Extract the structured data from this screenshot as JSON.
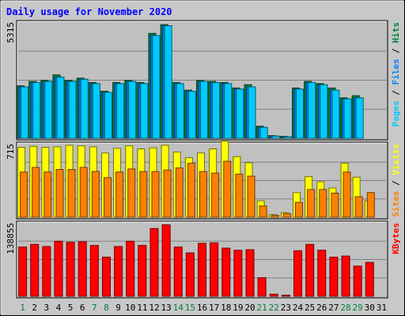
{
  "chart_data": {
    "type": "bar",
    "title": "Daily usage for November 2020",
    "categories": [
      "1",
      "2",
      "3",
      "4",
      "5",
      "6",
      "7",
      "8",
      "9",
      "10",
      "11",
      "12",
      "13",
      "14",
      "15",
      "16",
      "17",
      "18",
      "19",
      "20",
      "21",
      "22",
      "23",
      "24",
      "25",
      "26",
      "27",
      "28",
      "29",
      "30",
      "31"
    ],
    "weekend_days": [
      "1",
      "7",
      "8",
      "14",
      "15",
      "21",
      "22",
      "28",
      "29"
    ],
    "panels": [
      {
        "name": "pages-files-hits",
        "ymax": 5315,
        "ymax_label": "5315",
        "side_label": [
          "Pages",
          " / ",
          "Files",
          " / ",
          "Hits"
        ],
        "series": [
          {
            "name": "Hits",
            "color": "#008040",
            "values": [
              2400,
              2600,
              2650,
              2900,
              2650,
              2750,
              2550,
              2150,
              2550,
              2650,
              2550,
              4800,
              5200,
              2550,
              2200,
              2650,
              2600,
              2550,
              2300,
              2450,
              550,
              120,
              90,
              2300,
              2600,
              2500,
              2300,
              1850,
              1950,
              0,
              0
            ]
          },
          {
            "name": "Files",
            "color": "#0080ff",
            "values": [
              2350,
              2550,
              2600,
              2800,
              2600,
              2700,
              2500,
              2100,
              2500,
              2600,
              2500,
              4700,
              5150,
              2500,
              2150,
              2600,
              2550,
              2500,
              2250,
              2350,
              500,
              100,
              70,
              2250,
              2550,
              2450,
              2200,
              1800,
              1850,
              0,
              0
            ]
          },
          {
            "name": "Pages",
            "color": "#00ccff",
            "values": [
              2350,
              2550,
              2600,
              2800,
              2600,
              2700,
              2500,
              2100,
              2500,
              2600,
              2500,
              4700,
              5150,
              2500,
              2150,
              2600,
              2550,
              2500,
              2250,
              2350,
              500,
              100,
              70,
              2250,
              2550,
              2450,
              2200,
              1800,
              1850,
              0,
              0
            ]
          }
        ]
      },
      {
        "name": "visits-sites",
        "ymax": 715,
        "ymax_label": "715",
        "side_label": [
          "Sites",
          " / ",
          "Visits"
        ],
        "series": [
          {
            "name": "Visits",
            "color": "#ffff00",
            "values": [
              680,
              690,
              680,
              685,
              700,
              695,
              685,
              625,
              670,
              695,
              665,
              675,
              700,
              635,
              580,
              625,
              665,
              740,
              590,
              530,
              160,
              25,
              45,
              240,
              395,
              345,
              285,
              525,
              390,
              160,
              0
            ]
          },
          {
            "name": "Sites",
            "color": "#ff8000",
            "values": [
              440,
              485,
              440,
              465,
              465,
              485,
              445,
              385,
              440,
              470,
              445,
              445,
              460,
              480,
              525,
              445,
              430,
              545,
              420,
              400,
              110,
              20,
              35,
              145,
              270,
              270,
              235,
              440,
              200,
              240,
              0
            ]
          }
        ]
      },
      {
        "name": "kbytes",
        "ymax": 138855,
        "ymax_label": "138855",
        "side_label": [
          "KBytes"
        ],
        "series": [
          {
            "name": "KBytes",
            "color": "#ff0000",
            "values": [
              93000,
              98000,
              94000,
              104000,
              102000,
              103000,
              96000,
              74000,
              94000,
              104000,
              96000,
              128000,
              135000,
              93000,
              82000,
              100000,
              101000,
              91000,
              87000,
              88000,
              35000,
              4000,
              2000,
              86000,
              98000,
              87000,
              74000,
              76000,
              57000,
              64000,
              0
            ]
          }
        ]
      }
    ]
  }
}
